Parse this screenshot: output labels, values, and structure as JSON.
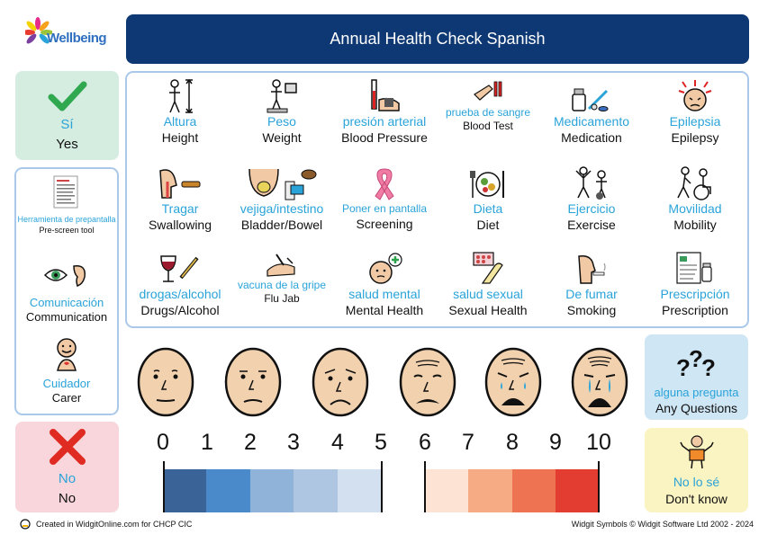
{
  "logo": {
    "text": "Wellbeing"
  },
  "title": "Annual Health Check Spanish",
  "yes": {
    "es": "Sí",
    "en": "Yes"
  },
  "no": {
    "es": "No",
    "en": "No"
  },
  "left_panel": [
    {
      "es": "Herramienta de prepantalla",
      "en": "Pre-screen tool",
      "icon": "document-icon"
    },
    {
      "es": "Comunicación",
      "en": "Communication",
      "icon": "eye-ear-icon"
    },
    {
      "es": "Cuidador",
      "en": "Carer",
      "icon": "carer-icon"
    }
  ],
  "grid": [
    {
      "es": "Altura",
      "en": "Height",
      "icon": "height-icon"
    },
    {
      "es": "Peso",
      "en": "Weight",
      "icon": "weight-scale-icon"
    },
    {
      "es": "presión arterial",
      "en": "Blood Pressure",
      "icon": "blood-pressure-icon"
    },
    {
      "es": "prueba de sangre",
      "en": "Blood Test",
      "icon": "blood-test-icon"
    },
    {
      "es": "Medicamento",
      "en": "Medication",
      "icon": "medication-icon"
    },
    {
      "es": "Epilepsia",
      "en": "Epilepsy",
      "icon": "epilepsy-icon"
    },
    {
      "es": "Tragar",
      "en": "Swallowing",
      "icon": "swallowing-icon"
    },
    {
      "es": "vejiga/intestino",
      "en": "Bladder/Bowel",
      "icon": "bladder-bowel-icon"
    },
    {
      "es": "Poner en pantalla",
      "en": "Screening",
      "icon": "ribbon-icon"
    },
    {
      "es": "Dieta",
      "en": "Diet",
      "icon": "diet-icon"
    },
    {
      "es": "Ejercicio",
      "en": "Exercise",
      "icon": "exercise-icon"
    },
    {
      "es": "Movilidad",
      "en": "Mobility",
      "icon": "mobility-icon"
    },
    {
      "es": "drogas/alcohol",
      "en": "Drugs/Alcohol",
      "icon": "drugs-alcohol-icon"
    },
    {
      "es": "vacuna de la gripe",
      "en": "Flu Jab",
      "icon": "flu-jab-icon"
    },
    {
      "es": "salud mental",
      "en": "Mental Health",
      "icon": "mental-health-icon"
    },
    {
      "es": "salud sexual",
      "en": "Sexual Health",
      "icon": "sexual-health-icon"
    },
    {
      "es": "De fumar",
      "en": "Smoking",
      "icon": "smoking-icon"
    },
    {
      "es": "Prescripción",
      "en": "Prescription",
      "icon": "prescription-icon"
    }
  ],
  "scale": {
    "numbers": [
      "0",
      "1",
      "2",
      "3",
      "4",
      "5",
      "6",
      "7",
      "8",
      "9",
      "10"
    ],
    "colors": [
      "#3a6497",
      "#4a8acb",
      "#8fb3d9",
      "#aec6e1",
      "#d2e0ef",
      "#fde3d3",
      "#f6ab85",
      "#ee7352",
      "#e23d30",
      "#cc1f26"
    ]
  },
  "questions": {
    "es": "alguna pregunta",
    "en": "Any Questions",
    "icon": "question-marks-icon"
  },
  "dont_know": {
    "es": "No lo sé",
    "en": "Don't know",
    "icon": "shrug-icon"
  },
  "footer": {
    "left": "Created in WidgitOnline.com for CHCP CIC",
    "right": "Widgit Symbols © Widgit Software Ltd 2002 - 2024"
  }
}
